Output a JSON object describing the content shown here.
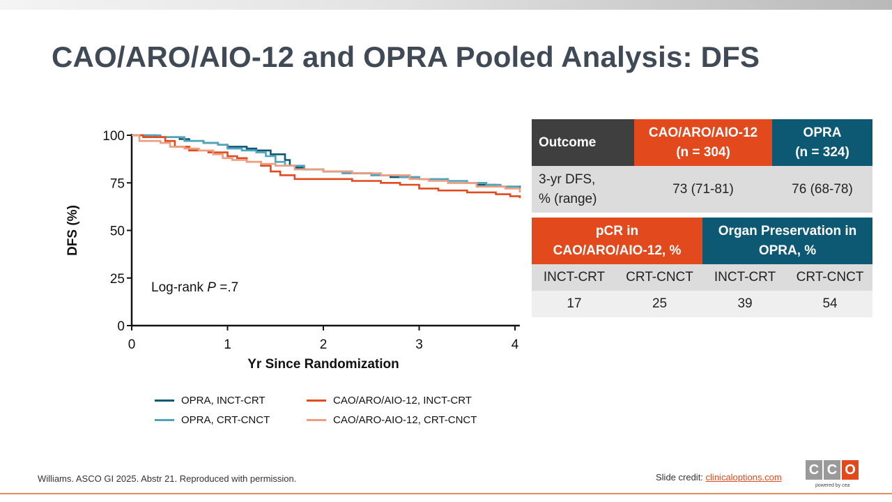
{
  "slide": {
    "title": "CAO/ARO/AIO-12 and OPRA Pooled Analysis: DFS"
  },
  "annotation": {
    "prefix": "Log-rank ",
    "p_letter": "P",
    "suffix": " =.7"
  },
  "colors": {
    "opra_inct": "#0d5872",
    "opra_crt": "#4fa3bb",
    "cao_inct": "#e2491d",
    "cao_crt": "#ee9d80",
    "header_dark": "#3f3f3f",
    "header_orange": "#e2491d",
    "header_teal": "#0d5872",
    "title_gray": "#3f4a56"
  },
  "chart_data": {
    "type": "line",
    "step": true,
    "xlabel": "Yr Since Randomization",
    "ylabel": "DFS (%)",
    "xlim": [
      0,
      4
    ],
    "ylim": [
      0,
      100
    ],
    "xticks": [
      0,
      1,
      2,
      3,
      4
    ],
    "yticks": [
      0,
      25,
      50,
      75,
      100
    ],
    "legend_position": "bottom",
    "series": [
      {
        "name": "OPRA, INCT-CRT",
        "color": "#0d5872",
        "x": [
          0,
          0.25,
          0.5,
          0.6,
          0.75,
          0.9,
          1.0,
          1.2,
          1.3,
          1.45,
          1.6,
          1.65,
          1.7,
          1.8,
          2.0,
          2.3,
          2.5,
          2.7,
          3.0,
          3.3,
          3.6,
          3.8,
          4.05
        ],
        "y": [
          100,
          99,
          98,
          97,
          96,
          95,
          94,
          93,
          92,
          90,
          87,
          84,
          83,
          82,
          81,
          80,
          79,
          78,
          77,
          75,
          74,
          73,
          72
        ]
      },
      {
        "name": "OPRA, CRT-CNCT",
        "color": "#4fa3bb",
        "x": [
          0,
          0.3,
          0.55,
          0.75,
          0.9,
          1.0,
          1.15,
          1.3,
          1.4,
          1.5,
          1.6,
          1.8,
          2.0,
          2.2,
          2.5,
          2.8,
          3.0,
          3.3,
          3.5,
          3.7,
          3.85,
          4.05
        ],
        "y": [
          100,
          99,
          97,
          96,
          95,
          93,
          92,
          91,
          89,
          86,
          84,
          82,
          81,
          80,
          79,
          78,
          77,
          76,
          75,
          74,
          73,
          73
        ]
      },
      {
        "name": "CAO/ARO/AIO-12, INCT-CRT",
        "color": "#e2491d",
        "x": [
          0,
          0.12,
          0.35,
          0.45,
          0.6,
          0.8,
          1.0,
          1.1,
          1.2,
          1.35,
          1.45,
          1.55,
          1.7,
          2.0,
          2.3,
          2.6,
          2.8,
          3.0,
          3.2,
          3.5,
          3.8,
          3.95,
          4.05
        ],
        "y": [
          100,
          99,
          97,
          94,
          92,
          91,
          89,
          88,
          86,
          84,
          81,
          79,
          77,
          77,
          76,
          75,
          74,
          72,
          71,
          70,
          69,
          68,
          67
        ]
      },
      {
        "name": "CAO/ARO-AIO-12, CRT-CNCT",
        "color": "#ee9d80",
        "x": [
          0,
          0.08,
          0.3,
          0.4,
          0.55,
          0.7,
          0.85,
          0.95,
          1.05,
          1.2,
          1.35,
          1.5,
          1.7,
          2.0,
          2.3,
          2.6,
          2.9,
          3.1,
          3.3,
          3.6,
          3.9,
          4.05
        ],
        "y": [
          100,
          97,
          96,
          94,
          93,
          92,
          90,
          88,
          87,
          86,
          85,
          84,
          82,
          81,
          80,
          79,
          77,
          76,
          75,
          73,
          72,
          70
        ]
      }
    ]
  },
  "table1": {
    "headers": [
      {
        "lines": [
          "Outcome"
        ]
      },
      {
        "lines": [
          "CAO/ARO/AIO-12",
          "(n = 304)"
        ]
      },
      {
        "lines": [
          "OPRA",
          "(n = 324)"
        ]
      }
    ],
    "row": {
      "label_lines": [
        "3-yr DFS,",
        "% (range)"
      ],
      "cao": "73 (71-81)",
      "opra": "76 (68-78)"
    }
  },
  "table2": {
    "headers": [
      {
        "lines": [
          "pCR in",
          "CAO/ARO/AIO-12, %"
        ]
      },
      {
        "lines": [
          "Organ Preservation in",
          "OPRA, %"
        ]
      }
    ],
    "subheaders": [
      "INCT-CRT",
      "CRT-CNCT",
      "INCT-CRT",
      "CRT-CNCT"
    ],
    "values": [
      "17",
      "25",
      "39",
      "54"
    ]
  },
  "footer": {
    "citation": "Williams. ASCO GI 2025. Abstr 21. Reproduced with permission.",
    "credit_prefix": "Slide credit: ",
    "credit_link": "clinicaloptions.com",
    "logo_letters": [
      "C",
      "C",
      "O"
    ],
    "logo_tagline": "powered by cea"
  }
}
